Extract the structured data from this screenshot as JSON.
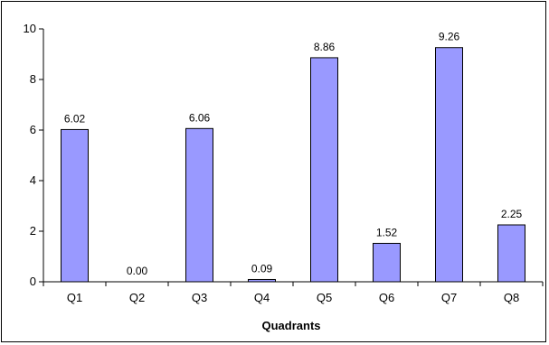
{
  "chart_data": {
    "type": "bar",
    "categories": [
      "Q1",
      "Q2",
      "Q3",
      "Q4",
      "Q5",
      "Q6",
      "Q7",
      "Q8"
    ],
    "values": [
      6.02,
      0.0,
      6.06,
      0.09,
      8.86,
      1.52,
      9.26,
      2.25
    ],
    "data_labels": [
      "6.02",
      "0.00",
      "6.06",
      "0.09",
      "8.86",
      "1.52",
      "9.26",
      "2.25"
    ],
    "title": "",
    "xlabel": "Quadrants",
    "ylabel": "",
    "ylim": [
      0,
      10
    ],
    "yticks": [
      0,
      2,
      4,
      6,
      8,
      10
    ],
    "ytick_labels": [
      "0",
      "2",
      "4",
      "6",
      "8",
      "10"
    ],
    "grid": false,
    "legend": "none",
    "colors": {
      "bar_fill": "#9999FF",
      "bar_stroke": "#000000",
      "axis": "#000000"
    }
  }
}
